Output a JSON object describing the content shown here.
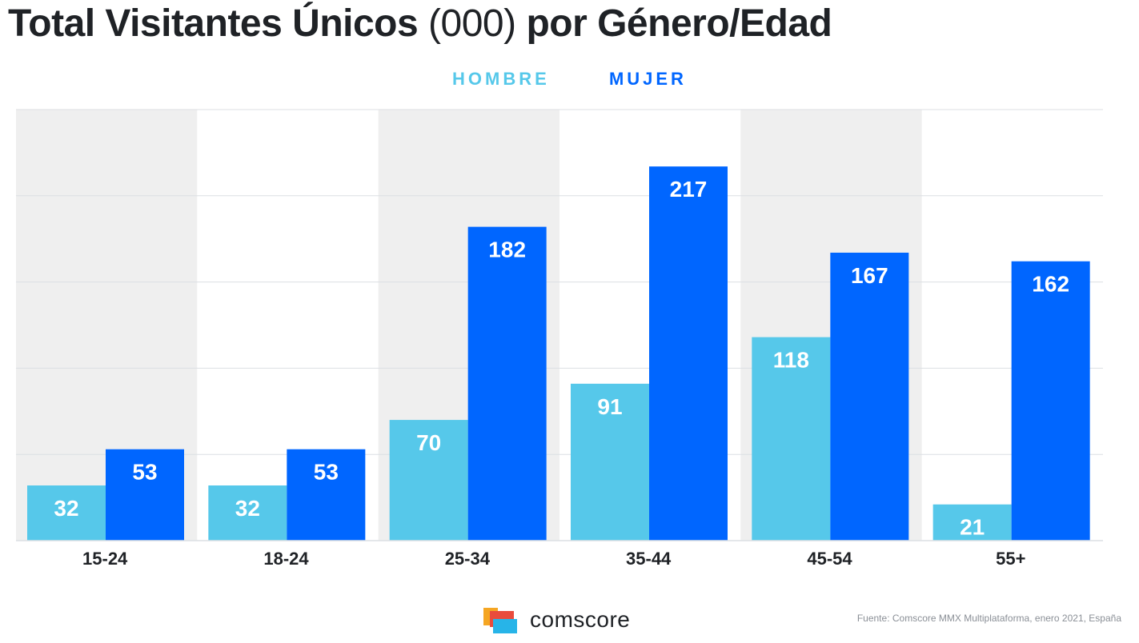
{
  "title": {
    "bold_part": "Total Visitantes Únicos",
    "light_part": "(000)",
    "bold_part_2": "por Género/Edad"
  },
  "colors": {
    "hombre": "#56c8ea",
    "mujer": "#0066ff",
    "band": "#efefef",
    "grid": "#dcdfe3",
    "text_dark": "#1f2226"
  },
  "chart_data": {
    "type": "bar",
    "categories": [
      "15-24",
      "18-24",
      "25-34",
      "35-44",
      "45-54",
      "55+"
    ],
    "series": [
      {
        "name": "HOMBRE",
        "values": [
          32,
          32,
          70,
          91,
          118,
          21
        ]
      },
      {
        "name": "MUJER",
        "values": [
          53,
          53,
          182,
          217,
          167,
          162
        ]
      }
    ],
    "ylim": [
      0,
      250
    ],
    "ytick_step": 50,
    "grid": true,
    "legend_position": "top-center",
    "data_labels": true
  },
  "footer": {
    "logo_text": "comscore",
    "source": "Fuente: Comscore MMX Multiplataforma, enero 2021, España"
  }
}
